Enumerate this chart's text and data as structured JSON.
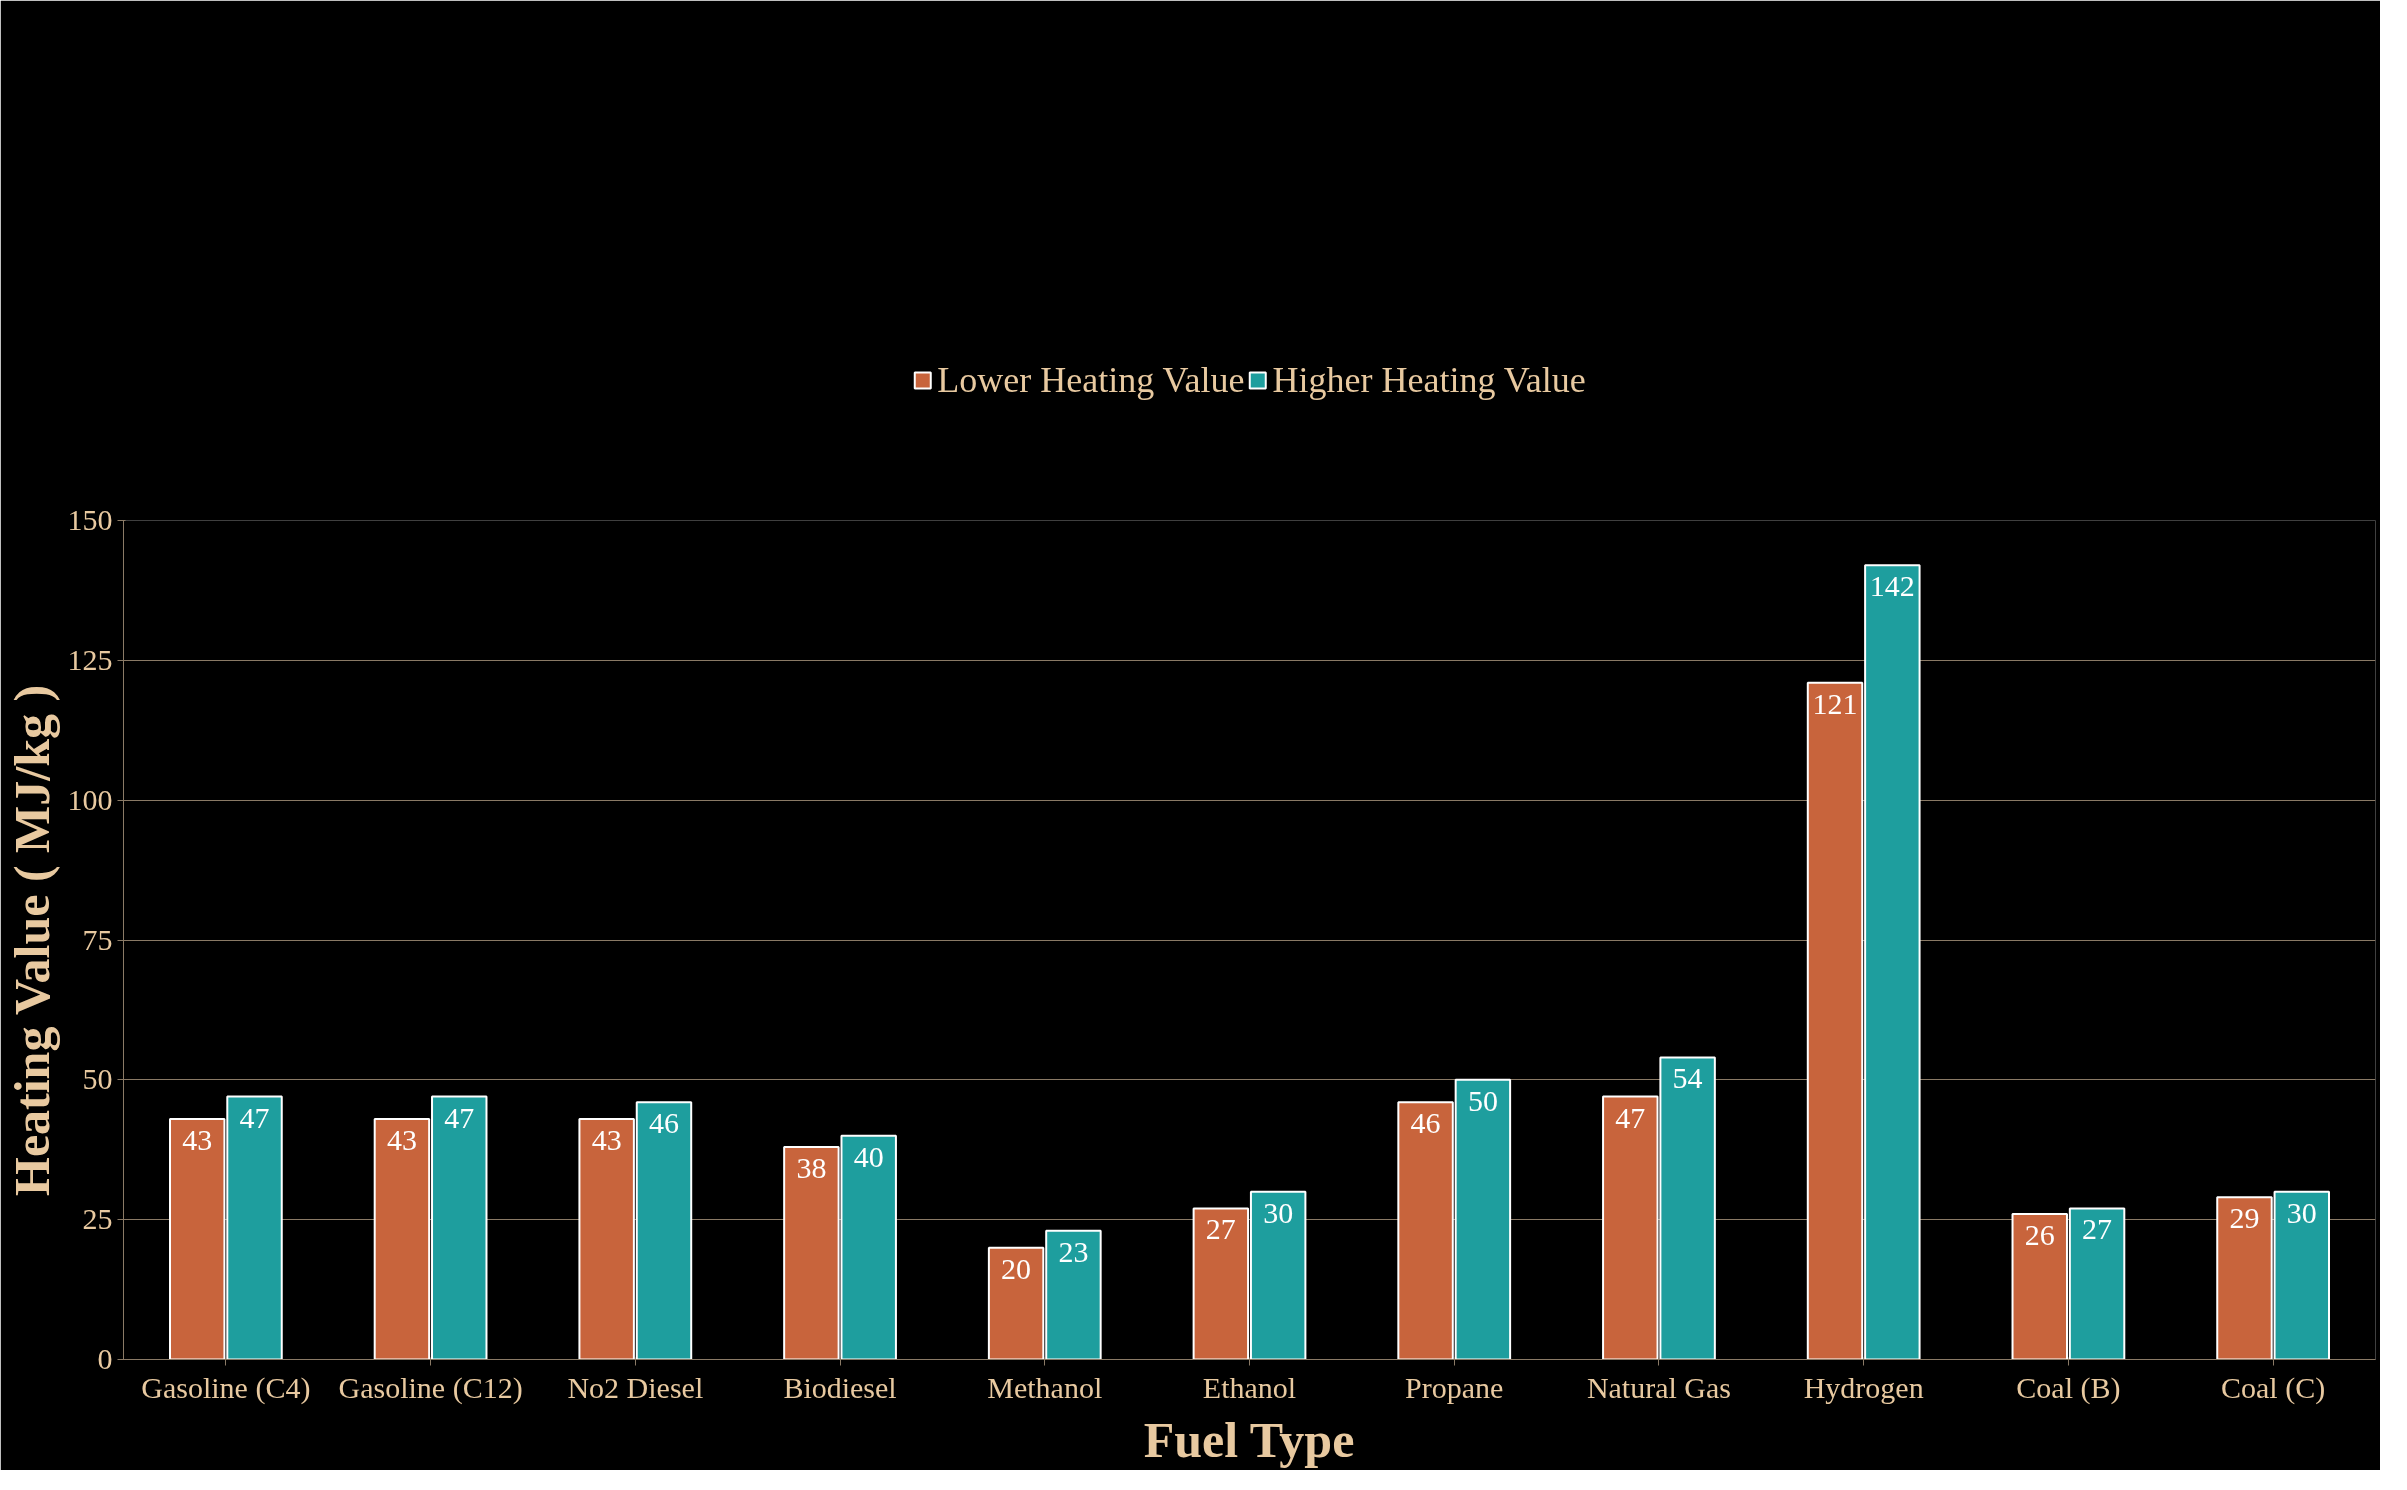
{
  "chart_data": {
    "type": "bar",
    "xlabel": "Fuel Type",
    "ylabel": "Heating Value ( MJ/kg )",
    "categories": [
      "Gasoline (C4)",
      "Gasoline (C12)",
      "No2 Diesel",
      "Biodiesel",
      "Methanol",
      "Ethanol",
      "Propane",
      "Natural Gas",
      "Hydrogen",
      "Coal (B)",
      "Coal (C)"
    ],
    "series": [
      {
        "name": "Lower Heating Value",
        "color": "#c8643c",
        "values": [
          43,
          43,
          43,
          38,
          20,
          27,
          46,
          47,
          121,
          26,
          29
        ]
      },
      {
        "name": "Higher Heating Value",
        "color": "#1e9e9e",
        "values": [
          47,
          47,
          46,
          40,
          23,
          30,
          50,
          54,
          142,
          27,
          30
        ]
      }
    ],
    "ylim": [
      0,
      150
    ],
    "yticks": [
      0,
      25,
      50,
      75,
      100,
      125,
      150
    ],
    "grid": "y",
    "legend": "top",
    "data_labels": true
  }
}
